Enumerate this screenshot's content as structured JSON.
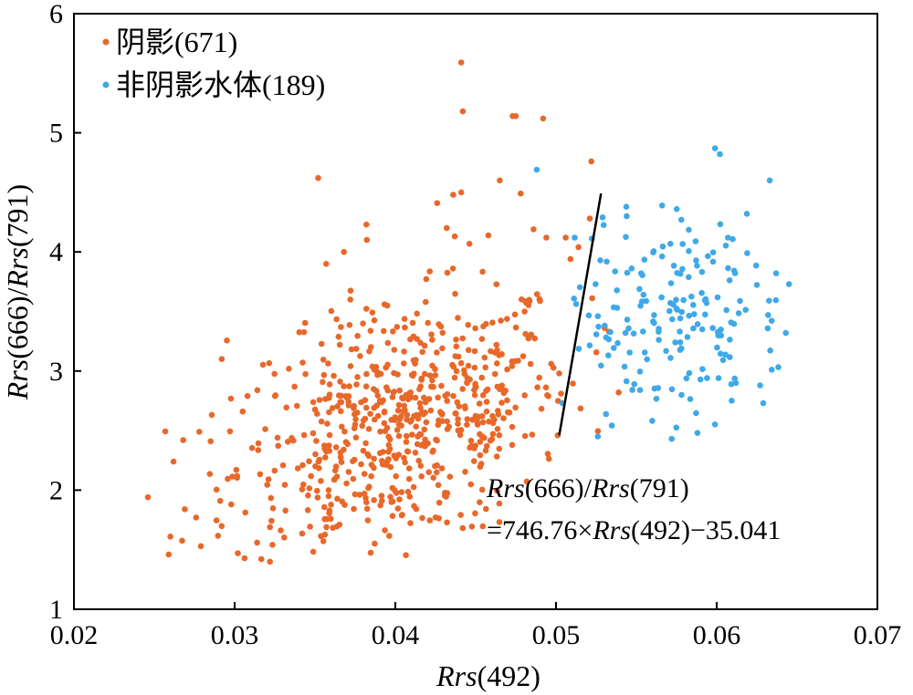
{
  "chart_data": {
    "type": "scatter",
    "x_label": {
      "italic": "Rrs",
      "rest": "(492)"
    },
    "y_label": {
      "italic1": "Rrs",
      "mid": "(666)/",
      "italic2": "Rrs",
      "rest": "(791)"
    },
    "xlim": [
      0.02,
      0.07
    ],
    "ylim": [
      1,
      6
    ],
    "x_ticks": [
      0.02,
      0.03,
      0.04,
      0.05,
      0.06,
      0.07
    ],
    "x_tick_labels": [
      "0.02",
      "0.03",
      "0.04",
      "0.05",
      "0.06",
      "0.07"
    ],
    "y_ticks": [
      1,
      2,
      3,
      4,
      5,
      6
    ],
    "y_tick_labels": [
      "1",
      "2",
      "3",
      "4",
      "5",
      "6"
    ],
    "grid": false,
    "legend_position": "top-left",
    "series": [
      {
        "name": "阴影(671)",
        "color": "#E8682A",
        "count": 671,
        "points": [
          [
            0.0246,
            1.94
          ],
          [
            0.0259,
            1.46
          ],
          [
            0.026,
            1.61
          ],
          [
            0.0262,
            2.24
          ],
          [
            0.0268,
            2.42
          ],
          [
            0.0269,
            1.84
          ],
          [
            0.0276,
            1.77
          ],
          [
            0.0278,
            2.49
          ],
          [
            0.0279,
            1.53
          ],
          [
            0.0292,
            3.1
          ],
          [
            0.0291,
            1.91
          ],
          [
            0.0301,
            2.17
          ],
          [
            0.0302,
            1.47
          ],
          [
            0.0305,
            2.66
          ],
          [
            0.0308,
            2.79
          ],
          [
            0.0352,
            4.62
          ],
          [
            0.0357,
            3.9
          ],
          [
            0.0368,
            4.0
          ],
          [
            0.0382,
            4.23
          ],
          [
            0.0372,
            3.6
          ],
          [
            0.0395,
            3.55
          ],
          [
            0.0426,
            4.41
          ],
          [
            0.0432,
            4.2
          ],
          [
            0.0436,
            4.48
          ],
          [
            0.0441,
            4.5
          ],
          [
            0.0437,
            4.13
          ],
          [
            0.0441,
            5.59
          ],
          [
            0.0442,
            5.18
          ],
          [
            0.0465,
            4.6
          ],
          [
            0.0473,
            5.14
          ],
          [
            0.0475,
            5.14
          ],
          [
            0.0492,
            5.12
          ],
          [
            0.0522,
            4.76
          ],
          [
            0.0478,
            4.49
          ],
          [
            0.0506,
            4.12
          ],
          [
            0.0486,
            4.19
          ],
          [
            0.0494,
            4.12
          ],
          [
            0.0322,
            1.4
          ],
          [
            0.0314,
            1.56
          ],
          [
            0.0322,
            1.69
          ],
          [
            0.0501,
            2.46
          ],
          [
            0.0502,
            2.98
          ],
          [
            0.0539,
            2.82
          ],
          [
            0.0533,
            3.33
          ],
          [
            0.0521,
            4.28
          ],
          [
            0.0514,
            4.04
          ],
          [
            0.0509,
            3.94
          ]
        ],
        "generated_background_count": 624
      },
      {
        "name": "非阴影水体(189)",
        "color": "#3FA9E8",
        "count": 189,
        "points": [
          [
            0.0488,
            4.69
          ],
          [
            0.0599,
            4.87
          ],
          [
            0.0602,
            4.82
          ],
          [
            0.0633,
            4.6
          ],
          [
            0.0645,
            3.73
          ],
          [
            0.0643,
            3.32
          ],
          [
            0.0629,
            2.73
          ],
          [
            0.0588,
            2.48
          ],
          [
            0.0572,
            2.43
          ],
          [
            0.0526,
            2.45
          ],
          [
            0.0504,
            2.73
          ],
          [
            0.0529,
            4.29
          ],
          [
            0.0544,
            4.3
          ],
          [
            0.0578,
            4.27
          ],
          [
            0.0566,
            4.39
          ],
          [
            0.0607,
            4.12
          ],
          [
            0.0619,
            3.99
          ],
          [
            0.0637,
            3.82
          ],
          [
            0.0632,
            3.47
          ],
          [
            0.0591,
            3.35
          ],
          [
            0.0561,
            3.47
          ],
          [
            0.0578,
            3.19
          ],
          [
            0.0594,
            2.94
          ],
          [
            0.0612,
            2.9
          ],
          [
            0.0627,
            2.88
          ],
          [
            0.0553,
            3.82
          ],
          [
            0.0538,
            3.53
          ]
        ],
        "generated_background_count": 162
      }
    ],
    "regression_line": {
      "x": [
        0.0502,
        0.0528
      ],
      "y": [
        2.46,
        4.49
      ]
    },
    "annotation": {
      "line1_italic1": "Rrs",
      "line1_mid": "(666)/",
      "line1_italic2": "Rrs",
      "line1_rest": "(791)",
      "line2_pre": "=746.76×",
      "line2_italic": "Rrs",
      "line2_rest": "(492)−35.041"
    }
  }
}
